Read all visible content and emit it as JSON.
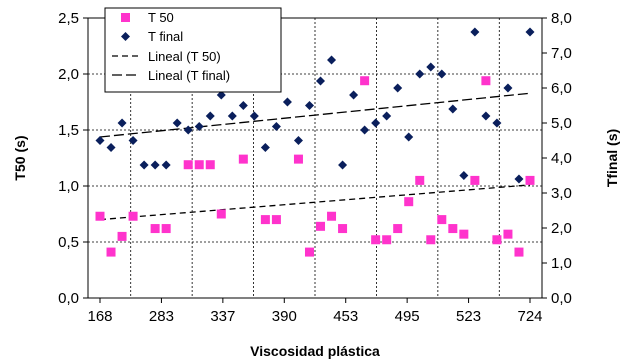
{
  "chart_data": {
    "type": "scatter",
    "title": "",
    "xlabel": "Viscosidad plástica",
    "ylabel": "T50 (s)",
    "y2label": "Tfinal (s)",
    "x_tick_labels": [
      "168",
      "283",
      "337",
      "390",
      "453",
      "495",
      "523",
      "724"
    ],
    "y_tick_labels": [
      "0,0",
      "0,5",
      "1,0",
      "1,5",
      "2,0",
      "2,5"
    ],
    "y2_tick_labels": [
      "0,0",
      "1,0",
      "2,0",
      "3,0",
      "4,0",
      "5,0",
      "6,0",
      "7,0",
      "8,0"
    ],
    "ylim": [
      0,
      2.5
    ],
    "y2lim": [
      0,
      8
    ],
    "grid": true,
    "legend_position": "top-left",
    "x_index_range": [
      0,
      39
    ],
    "colors": {
      "t50": "#ff33cc",
      "tfinal": "#0a1f5c"
    },
    "series": [
      {
        "name": "T 50",
        "marker": "square",
        "axis": "left",
        "x": [
          0,
          1,
          2,
          3,
          5,
          6,
          8,
          9,
          10,
          11,
          13,
          15,
          16,
          18,
          19,
          20,
          21,
          22,
          24,
          25,
          26,
          27,
          28,
          29,
          30,
          31,
          32,
          33,
          34,
          35,
          36,
          37,
          38,
          39
        ],
        "values": [
          0.73,
          0.41,
          0.55,
          0.73,
          0.62,
          0.62,
          1.19,
          1.19,
          1.19,
          0.75,
          1.24,
          0.7,
          0.7,
          1.24,
          0.41,
          0.64,
          0.73,
          0.62,
          1.94,
          0.52,
          0.52,
          0.62,
          0.86,
          1.05,
          0.52,
          0.7,
          0.62,
          0.57,
          1.05,
          1.94,
          0.52,
          0.57,
          0.41,
          1.05
        ]
      },
      {
        "name": "T final",
        "marker": "diamond",
        "axis": "right",
        "x": [
          0,
          1,
          2,
          3,
          4,
          5,
          6,
          7,
          8,
          9,
          10,
          11,
          12,
          13,
          14,
          15,
          16,
          17,
          18,
          19,
          20,
          21,
          22,
          23,
          24,
          25,
          26,
          27,
          28,
          29,
          30,
          31,
          32,
          33,
          34,
          35,
          36,
          37,
          38,
          39
        ],
        "values": [
          4.5,
          4.3,
          5.0,
          4.5,
          3.8,
          3.8,
          3.8,
          5.0,
          4.8,
          4.9,
          5.2,
          5.8,
          5.2,
          5.5,
          5.2,
          4.3,
          4.9,
          5.6,
          4.5,
          5.5,
          6.2,
          6.8,
          3.8,
          5.8,
          4.8,
          5.0,
          5.2,
          6.0,
          4.6,
          6.4,
          6.6,
          6.4,
          5.4,
          3.5,
          7.6,
          5.2,
          5.0,
          6.0,
          3.4,
          7.6
        ]
      },
      {
        "name": "Lineal (T 50)",
        "type": "trendline",
        "axis": "left",
        "x": [
          0,
          39
        ],
        "values": [
          0.7,
          1.01
        ]
      },
      {
        "name": "Lineal (T final)",
        "type": "trendline",
        "axis": "right",
        "x": [
          0,
          39
        ],
        "values": [
          4.6,
          5.85
        ]
      }
    ]
  }
}
